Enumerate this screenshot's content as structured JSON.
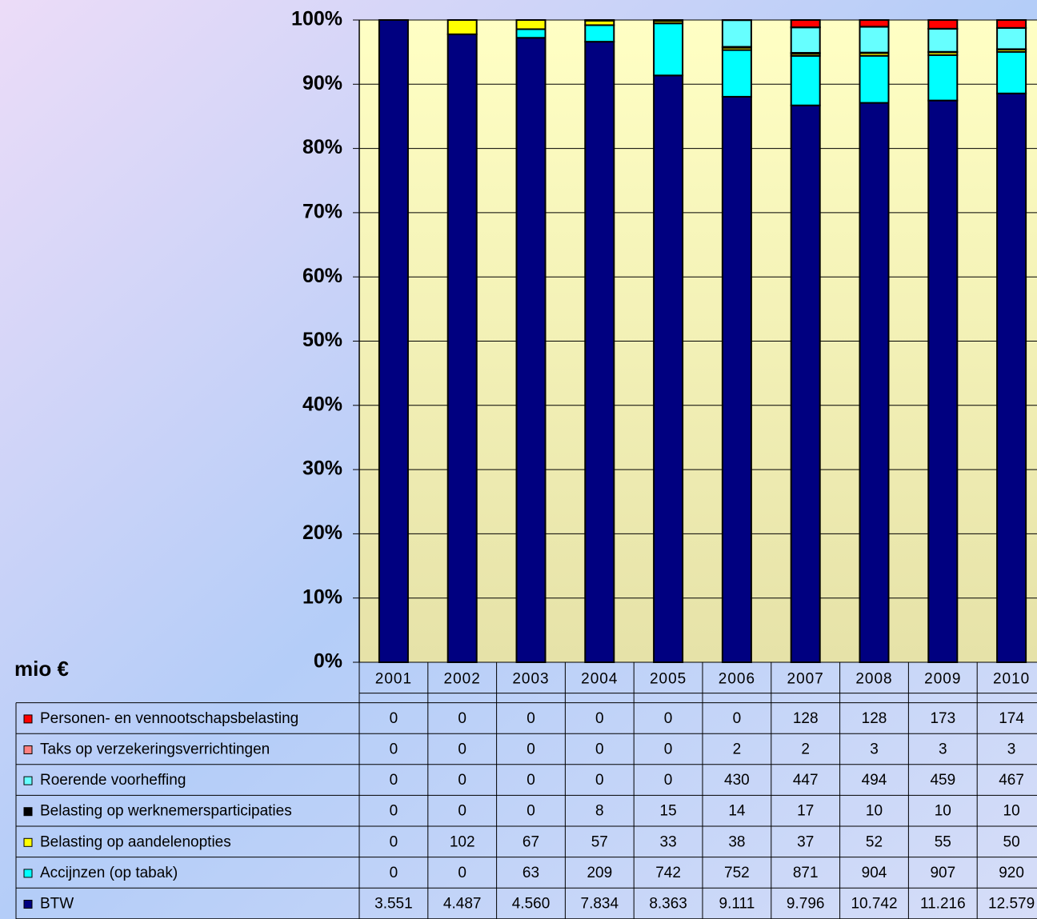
{
  "chart_data": {
    "type": "bar",
    "stacking": "percent",
    "unit": "mio €",
    "categories": [
      "2001",
      "2002",
      "2003",
      "2004",
      "2005",
      "2006",
      "2007",
      "2008",
      "2009",
      "2010"
    ],
    "series": [
      {
        "name": "BTW",
        "color": "#000080",
        "values": [
          3551,
          4487,
          4560,
          7834,
          8363,
          9111,
          9796,
          10742,
          11216,
          12579
        ],
        "value_labels": [
          "3.551",
          "4.487",
          "4.560",
          "7.834",
          "8.363",
          "9.111",
          "9.796",
          "10.742",
          "11.216",
          "12.579"
        ]
      },
      {
        "name": "Accijnzen (op tabak)",
        "color": "#00ffff",
        "values": [
          0,
          0,
          63,
          209,
          742,
          752,
          871,
          904,
          907,
          920
        ]
      },
      {
        "name": "Belasting op aandelenopties",
        "color": "#ffff00",
        "values": [
          0,
          102,
          67,
          57,
          33,
          38,
          37,
          52,
          55,
          50
        ]
      },
      {
        "name": "Belasting op werknemersparticipaties",
        "color": "#000000",
        "values": [
          0,
          0,
          0,
          8,
          15,
          14,
          17,
          10,
          10,
          10
        ]
      },
      {
        "name": "Roerende voorheffing",
        "color": "#66ffff",
        "values": [
          0,
          0,
          0,
          0,
          0,
          430,
          447,
          494,
          459,
          467
        ]
      },
      {
        "name": "Taks op verzekeringsverrichtingen",
        "color": "#ff8080",
        "values": [
          0,
          0,
          0,
          0,
          0,
          2,
          2,
          3,
          3,
          3
        ]
      },
      {
        "name": "Personen- en vennootschapsbelasting",
        "color": "#ff0000",
        "values": [
          0,
          0,
          0,
          0,
          0,
          0,
          128,
          128,
          173,
          174
        ]
      }
    ],
    "ylim": [
      0,
      100
    ],
    "yticks": [
      {
        "value": 0,
        "label": "0%"
      },
      {
        "value": 10,
        "label": "10%"
      },
      {
        "value": 20,
        "label": "20%"
      },
      {
        "value": 30,
        "label": "30%"
      },
      {
        "value": 40,
        "label": "40%"
      },
      {
        "value": 50,
        "label": "50%"
      },
      {
        "value": 60,
        "label": "60%"
      },
      {
        "value": 70,
        "label": "70%"
      },
      {
        "value": 80,
        "label": "80%"
      },
      {
        "value": 90,
        "label": "90%"
      },
      {
        "value": 100,
        "label": "100%"
      }
    ],
    "grid": true
  }
}
